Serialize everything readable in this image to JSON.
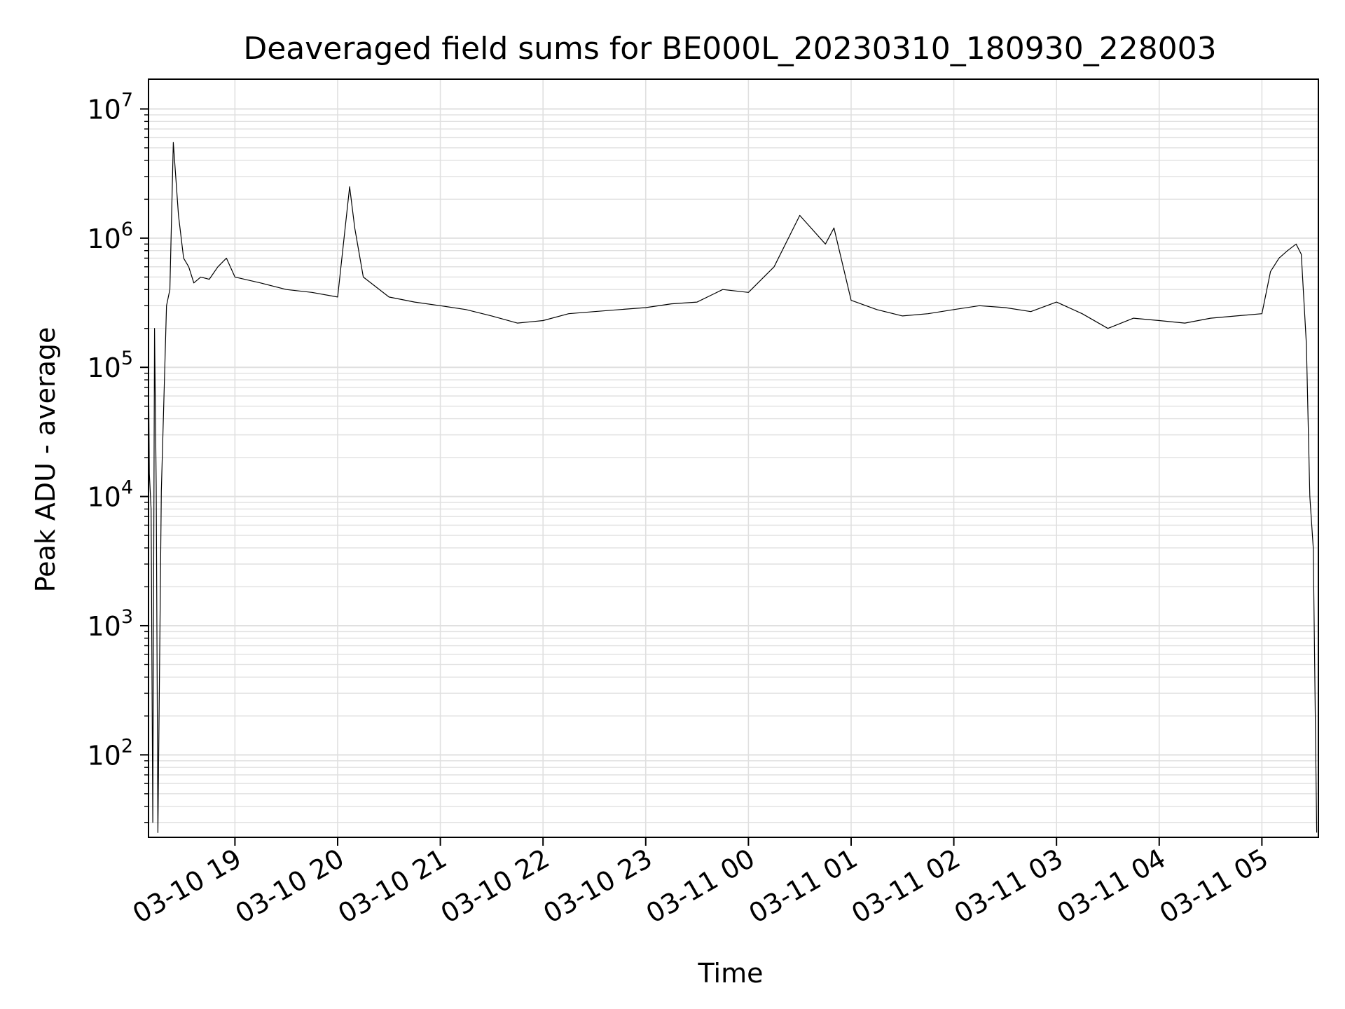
{
  "chart_data": {
    "type": "line",
    "title": "Deaveraged field sums for BE000L_20230310_180930_228003",
    "xlabel": "Time",
    "ylabel": "Peak ADU - average",
    "y_scale": "log",
    "ylim": [
      23,
      17000000
    ],
    "xlim": [
      "2023-03-10T18:09:30",
      "2023-03-11T05:33:00"
    ],
    "grid": true,
    "line_color": "#000000",
    "grid_color": "#e0e0e0",
    "x_ticks": [
      {
        "t": "2023-03-10T19:00:00",
        "label": "03-10 19"
      },
      {
        "t": "2023-03-10T20:00:00",
        "label": "03-10 20"
      },
      {
        "t": "2023-03-10T21:00:00",
        "label": "03-10 21"
      },
      {
        "t": "2023-03-10T22:00:00",
        "label": "03-10 22"
      },
      {
        "t": "2023-03-10T23:00:00",
        "label": "03-10 23"
      },
      {
        "t": "2023-03-11T00:00:00",
        "label": "03-11 00"
      },
      {
        "t": "2023-03-11T01:00:00",
        "label": "03-11 01"
      },
      {
        "t": "2023-03-11T02:00:00",
        "label": "03-11 02"
      },
      {
        "t": "2023-03-11T03:00:00",
        "label": "03-11 03"
      },
      {
        "t": "2023-03-11T04:00:00",
        "label": "03-11 04"
      },
      {
        "t": "2023-03-11T05:00:00",
        "label": "03-11 05"
      }
    ],
    "y_ticks": [
      {
        "v": 100,
        "exp": "2"
      },
      {
        "v": 1000,
        "exp": "3"
      },
      {
        "v": 10000,
        "exp": "4"
      },
      {
        "v": 100000,
        "exp": "5"
      },
      {
        "v": 1000000,
        "exp": "6"
      },
      {
        "v": 10000000,
        "exp": "7"
      }
    ],
    "series": [
      {
        "x": [
          "2023-03-10T18:09:30",
          "2023-03-10T18:10:00",
          "2023-03-10T18:11:00",
          "2023-03-10T18:12:00",
          "2023-03-10T18:13:00",
          "2023-03-10T18:14:00",
          "2023-03-10T18:15:00",
          "2023-03-10T18:17:00",
          "2023-03-10T18:20:00",
          "2023-03-10T18:22:00",
          "2023-03-10T18:24:00",
          "2023-03-10T18:27:00",
          "2023-03-10T18:30:00",
          "2023-03-10T18:33:00",
          "2023-03-10T18:36:00",
          "2023-03-10T18:40:00",
          "2023-03-10T18:45:00",
          "2023-03-10T18:50:00",
          "2023-03-10T18:55:00",
          "2023-03-10T19:00:00",
          "2023-03-10T19:15:00",
          "2023-03-10T19:30:00",
          "2023-03-10T19:45:00",
          "2023-03-10T20:00:00",
          "2023-03-10T20:07:00",
          "2023-03-10T20:10:00",
          "2023-03-10T20:15:00",
          "2023-03-10T20:30:00",
          "2023-03-10T20:45:00",
          "2023-03-10T21:00:00",
          "2023-03-10T21:15:00",
          "2023-03-10T21:30:00",
          "2023-03-10T21:45:00",
          "2023-03-10T22:00:00",
          "2023-03-10T22:15:00",
          "2023-03-10T22:30:00",
          "2023-03-10T22:45:00",
          "2023-03-10T23:00:00",
          "2023-03-10T23:15:00",
          "2023-03-10T23:30:00",
          "2023-03-10T23:45:00",
          "2023-03-11T00:00:00",
          "2023-03-11T00:15:00",
          "2023-03-11T00:30:00",
          "2023-03-11T00:45:00",
          "2023-03-11T00:50:00",
          "2023-03-11T01:00:00",
          "2023-03-11T01:15:00",
          "2023-03-11T01:30:00",
          "2023-03-11T01:45:00",
          "2023-03-11T02:00:00",
          "2023-03-11T02:15:00",
          "2023-03-11T02:30:00",
          "2023-03-11T02:45:00",
          "2023-03-11T03:00:00",
          "2023-03-11T03:15:00",
          "2023-03-11T03:30:00",
          "2023-03-11T03:45:00",
          "2023-03-11T04:00:00",
          "2023-03-11T04:15:00",
          "2023-03-11T04:30:00",
          "2023-03-11T04:45:00",
          "2023-03-11T05:00:00",
          "2023-03-11T05:05:00",
          "2023-03-11T05:10:00",
          "2023-03-11T05:15:00",
          "2023-03-11T05:20:00",
          "2023-03-11T05:23:00",
          "2023-03-11T05:26:00",
          "2023-03-11T05:28:00",
          "2023-03-11T05:30:00",
          "2023-03-11T05:32:00"
        ],
        "y": [
          100000,
          15000,
          8000,
          30,
          200000,
          12000,
          25,
          11000,
          300000,
          400000,
          5500000,
          1500000,
          700000,
          600000,
          450000,
          500000,
          480000,
          600000,
          700000,
          500000,
          450000,
          400000,
          380000,
          350000,
          2500000,
          1200000,
          500000,
          350000,
          320000,
          300000,
          280000,
          250000,
          220000,
          230000,
          260000,
          270000,
          280000,
          290000,
          310000,
          320000,
          400000,
          380000,
          600000,
          1500000,
          900000,
          1200000,
          330000,
          280000,
          250000,
          260000,
          280000,
          300000,
          290000,
          270000,
          320000,
          260000,
          200000,
          240000,
          230000,
          220000,
          240000,
          250000,
          260000,
          550000,
          700000,
          800000,
          900000,
          750000,
          150000,
          10000,
          4000,
          25
        ]
      }
    ]
  }
}
